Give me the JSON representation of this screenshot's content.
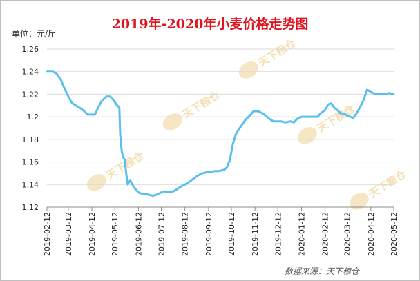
{
  "chart_data": {
    "type": "line",
    "title": "2019年-2020年小麦价格走势图",
    "unit_label": "单位：元/斤",
    "source": "数据来源：天下粮仓",
    "watermark": "天下粮仓",
    "xlabel": "",
    "ylabel": "",
    "ylim": [
      1.12,
      1.26
    ],
    "yticks": [
      "1.12",
      "1.14",
      "1.16",
      "1.18",
      "1.2",
      "1.22",
      "1.24",
      "1.26"
    ],
    "xticks": [
      "2019-02-12",
      "2019-03-12",
      "2019-04-12",
      "2019-05-12",
      "2019-06-12",
      "2019-07-12",
      "2019-08-12",
      "2019-09-12",
      "2019-10-12",
      "2019-11-12",
      "2019-12-12",
      "2020-01-12",
      "2020-02-12",
      "2020-03-12",
      "2020-04-12",
      "2020-05-12"
    ],
    "grid": true,
    "legend": "none",
    "line_color": "#5bbfec",
    "series": [
      {
        "x": [
          "2019-02-12",
          "2019-02-20",
          "2019-02-25",
          "2019-03-02",
          "2019-03-07",
          "2019-03-12",
          "2019-03-17",
          "2019-03-22",
          "2019-03-27",
          "2019-04-02",
          "2019-04-06",
          "2019-04-12",
          "2019-04-16",
          "2019-04-20",
          "2019-04-25",
          "2019-05-01",
          "2019-05-06",
          "2019-05-10",
          "2019-05-14",
          "2019-05-18",
          "2019-05-19",
          "2019-05-21",
          "2019-05-23",
          "2019-05-25",
          "2019-05-27",
          "2019-05-29",
          "2019-06-01",
          "2019-06-04",
          "2019-06-08",
          "2019-06-12",
          "2019-06-16",
          "2019-06-20",
          "2019-06-25",
          "2019-07-01",
          "2019-07-06",
          "2019-07-12",
          "2019-07-16",
          "2019-07-22",
          "2019-07-28",
          "2019-08-02",
          "2019-08-06",
          "2019-08-12",
          "2019-08-17",
          "2019-08-23",
          "2019-08-29",
          "2019-09-04",
          "2019-09-10",
          "2019-09-15",
          "2019-09-20",
          "2019-09-26",
          "2019-10-02",
          "2019-10-06",
          "2019-10-10",
          "2019-10-14",
          "2019-10-18",
          "2019-10-24",
          "2019-10-30",
          "2019-11-05",
          "2019-11-10",
          "2019-11-16",
          "2019-11-22",
          "2019-11-26",
          "2019-12-01",
          "2019-12-06",
          "2019-12-12",
          "2019-12-16",
          "2019-12-22",
          "2019-12-28",
          "2020-01-02",
          "2020-01-06",
          "2020-01-12",
          "2020-01-20",
          "2020-01-28",
          "2020-02-02",
          "2020-02-06",
          "2020-02-12",
          "2020-02-16",
          "2020-02-20",
          "2020-02-24",
          "2020-02-28",
          "2020-03-03",
          "2020-03-08",
          "2020-03-12",
          "2020-03-16",
          "2020-03-20",
          "2020-03-26",
          "2020-04-02",
          "2020-04-07",
          "2020-04-12",
          "2020-04-15",
          "2020-04-20",
          "2020-04-25",
          "2020-05-01",
          "2020-05-06",
          "2020-05-12"
        ],
        "values": [
          1.24,
          1.24,
          1.238,
          1.233,
          1.225,
          1.218,
          1.212,
          1.21,
          1.208,
          1.205,
          1.202,
          1.202,
          1.202,
          1.208,
          1.214,
          1.218,
          1.218,
          1.215,
          1.211,
          1.208,
          1.185,
          1.17,
          1.164,
          1.162,
          1.15,
          1.14,
          1.144,
          1.14,
          1.136,
          1.133,
          1.132,
          1.132,
          1.131,
          1.13,
          1.131,
          1.133,
          1.134,
          1.133,
          1.134,
          1.136,
          1.138,
          1.14,
          1.142,
          1.145,
          1.148,
          1.15,
          1.151,
          1.151,
          1.152,
          1.152,
          1.153,
          1.155,
          1.162,
          1.176,
          1.185,
          1.191,
          1.197,
          1.201,
          1.205,
          1.205,
          1.203,
          1.201,
          1.198,
          1.196,
          1.196,
          1.196,
          1.195,
          1.196,
          1.195,
          1.198,
          1.2,
          1.2,
          1.2,
          1.2,
          1.203,
          1.206,
          1.211,
          1.212,
          1.208,
          1.206,
          1.203,
          1.203,
          1.201,
          1.2,
          1.199,
          1.205,
          1.214,
          1.224,
          1.222,
          1.221,
          1.22,
          1.22,
          1.22,
          1.221,
          1.22
        ]
      }
    ]
  }
}
